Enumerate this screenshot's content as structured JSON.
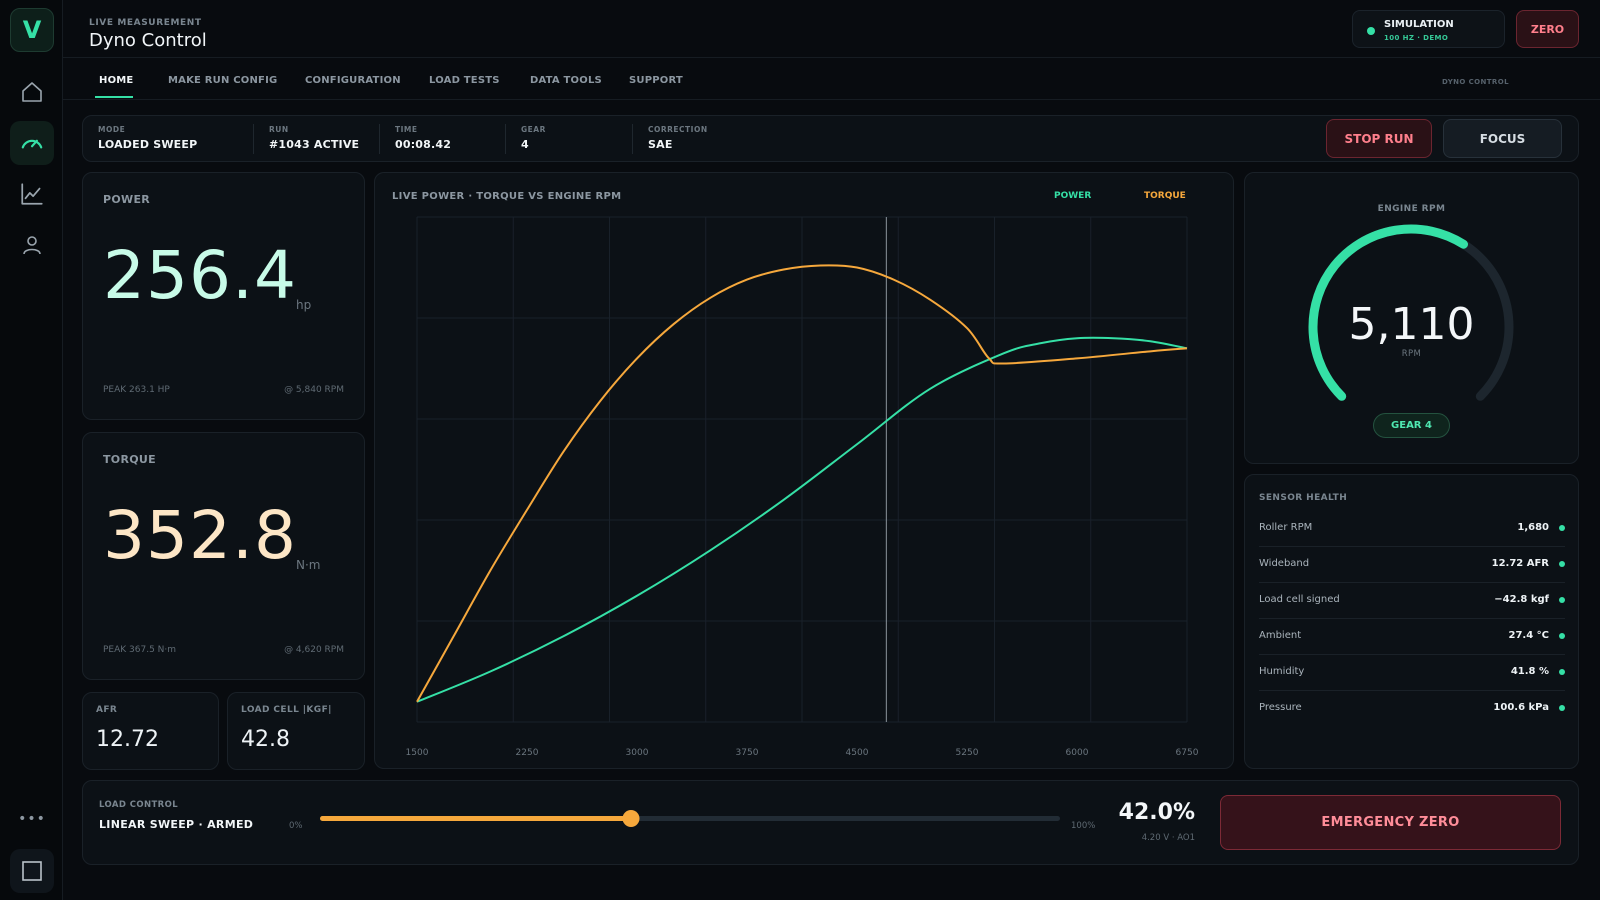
{
  "app": {
    "logo": "V",
    "eyebrow": "LIVE MEASUREMENT",
    "title": "Dyno Control"
  },
  "sidebar": {
    "icons": [
      "home-icon",
      "gauge-icon",
      "chart-line-icon",
      "user-icon",
      "more-icon",
      "square-icon"
    ],
    "more": "•••"
  },
  "header": {
    "sim_title": "SIMULATION",
    "sim_sub": "100 HZ · DEMO",
    "zero_label": "ZERO"
  },
  "nav": {
    "tabs": [
      {
        "label": "HOME",
        "active": true
      },
      {
        "label": "MAKE RUN CONFIG"
      },
      {
        "label": "CONFIGURATION"
      },
      {
        "label": "LOAD TESTS"
      },
      {
        "label": "DATA TOOLS"
      },
      {
        "label": "SUPPORT"
      }
    ],
    "right_label": "DYNO CONTROL"
  },
  "status": {
    "cells": [
      {
        "label": "MODE",
        "value": "LOADED SWEEP"
      },
      {
        "label": "RUN",
        "value": "#1043 ACTIVE"
      },
      {
        "label": "TIME",
        "value": "00:08.42"
      },
      {
        "label": "GEAR",
        "value": "4"
      },
      {
        "label": "CORRECTION",
        "value": "SAE"
      }
    ],
    "stop_label": "STOP RUN",
    "focus_label": "FOCUS"
  },
  "power": {
    "label": "POWER",
    "value": "256.4",
    "unit": "hp",
    "peak": "PEAK 263.1 HP",
    "peak_at": "@ 5,840 RPM",
    "color": "#c8fbe8"
  },
  "torque": {
    "label": "TORQUE",
    "value": "352.8",
    "unit": "N·m",
    "peak": "PEAK 367.5 N·m",
    "peak_at": "@ 4,620 RPM",
    "color": "#fde6c6"
  },
  "afr": {
    "label": "AFR",
    "value": "12.72"
  },
  "loadcell": {
    "label": "LOAD CELL |KGF|",
    "value": "42.8"
  },
  "chart_data": {
    "type": "line",
    "title": "LIVE POWER · TORQUE VS ENGINE RPM",
    "xlabel": "",
    "ylabel": "",
    "xlim": [
      1500,
      6750
    ],
    "ylim": [
      0,
      5
    ],
    "x_ticks": [
      "1500",
      "2250",
      "3000",
      "3750",
      "4500",
      "5250",
      "6000",
      "6750"
    ],
    "grid": true,
    "legend_position": "top-right",
    "cursor_rpm": 4700,
    "series": [
      {
        "name": "POWER",
        "color": "#35e0a6",
        "points": [
          [
            1500,
            0.2
          ],
          [
            2000,
            0.5
          ],
          [
            2500,
            0.85
          ],
          [
            3000,
            1.25
          ],
          [
            3500,
            1.7
          ],
          [
            4000,
            2.2
          ],
          [
            4500,
            2.75
          ],
          [
            5000,
            3.3
          ],
          [
            5500,
            3.65
          ],
          [
            5750,
            3.75
          ],
          [
            6000,
            3.8
          ],
          [
            6250,
            3.8
          ],
          [
            6500,
            3.77
          ],
          [
            6750,
            3.7
          ]
        ]
      },
      {
        "name": "TORQUE",
        "color": "#f6a83c",
        "points": [
          [
            1500,
            0.2
          ],
          [
            1750,
            0.85
          ],
          [
            2000,
            1.5
          ],
          [
            2250,
            2.1
          ],
          [
            2500,
            2.68
          ],
          [
            2750,
            3.18
          ],
          [
            3000,
            3.6
          ],
          [
            3250,
            3.94
          ],
          [
            3500,
            4.2
          ],
          [
            3750,
            4.38
          ],
          [
            4000,
            4.48
          ],
          [
            4250,
            4.52
          ],
          [
            4500,
            4.5
          ],
          [
            4750,
            4.38
          ],
          [
            5000,
            4.18
          ],
          [
            5250,
            3.9
          ],
          [
            5400,
            3.6
          ],
          [
            5500,
            3.55
          ],
          [
            6000,
            3.6
          ],
          [
            6500,
            3.67
          ],
          [
            6750,
            3.7
          ]
        ]
      }
    ]
  },
  "gauge": {
    "label": "ENGINE RPM",
    "value": "5,110",
    "unit": "RPM",
    "fraction": 0.62,
    "gear_badge": "GEAR 4",
    "color": "#35e0a6"
  },
  "sensors": {
    "title": "SENSOR HEALTH",
    "rows": [
      {
        "name": "Roller RPM",
        "value": "1,680"
      },
      {
        "name": "Wideband",
        "value": "12.72 AFR"
      },
      {
        "name": "Load cell signed",
        "value": "−42.8 kgf"
      },
      {
        "name": "Ambient",
        "value": "27.4 °C"
      },
      {
        "name": "Humidity",
        "value": "41.8 %"
      },
      {
        "name": "Pressure",
        "value": "100.6 kPa"
      }
    ]
  },
  "load_control": {
    "label": "LOAD CONTROL",
    "value": "LINEAR SWEEP · ARMED",
    "min_label": "0%",
    "max_label": "100%",
    "percent": 42,
    "percent_label": "42.0%",
    "sub": "4.20 V · AO1",
    "emergency_label": "EMERGENCY ZERO"
  }
}
